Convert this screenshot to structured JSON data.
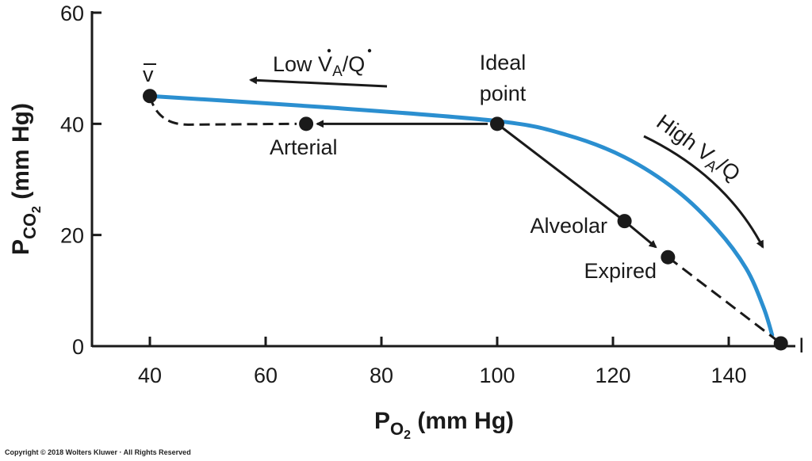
{
  "chart_data": {
    "type": "line",
    "xlabel": {
      "main": "P",
      "sub": "O",
      "subsub": "2",
      "unit": " (mm Hg)"
    },
    "ylabel": {
      "main": "P",
      "sub": "CO",
      "subsub": "2",
      "unit": " (mm Hg)"
    },
    "xlim": [
      30,
      150
    ],
    "ylim": [
      0,
      60
    ],
    "x_ticks": [
      40,
      60,
      80,
      100,
      120,
      140
    ],
    "y_ticks": [
      0,
      20,
      40,
      60
    ],
    "colors": {
      "curve": "#2b8fd0",
      "ink": "#1a1a1a"
    },
    "curve": [
      {
        "x": 40,
        "y": 45
      },
      {
        "x": 70,
        "y": 43
      },
      {
        "x": 100,
        "y": 40.5
      },
      {
        "x": 112,
        "y": 38
      },
      {
        "x": 122,
        "y": 34
      },
      {
        "x": 131,
        "y": 28
      },
      {
        "x": 138,
        "y": 21
      },
      {
        "x": 143,
        "y": 14
      },
      {
        "x": 146,
        "y": 7
      },
      {
        "x": 147.5,
        "y": 2
      }
    ],
    "points": [
      {
        "name": "mixed-venous",
        "label": "v",
        "x": 40,
        "y": 45
      },
      {
        "name": "arterial",
        "label": "Arterial",
        "x": 67,
        "y": 40
      },
      {
        "name": "ideal",
        "label_lines": [
          "Ideal",
          "point"
        ],
        "x": 100,
        "y": 40
      },
      {
        "name": "alveolar",
        "label": "Alveolar",
        "x": 122,
        "y": 22.5
      },
      {
        "name": "expired",
        "label": "Expired",
        "x": 129.5,
        "y": 16
      },
      {
        "name": "inspired",
        "label": "I",
        "x": 149,
        "y": 0.5
      }
    ],
    "annotations": {
      "low": {
        "prefix": "Low ",
        "v": "V",
        "sub": "A",
        "sep": "/",
        "q": "Q"
      },
      "high": {
        "prefix": "High ",
        "v": "V",
        "sub": "A",
        "sep": "/",
        "q": "Q"
      }
    }
  },
  "copyright": "Copyright © 2018 Wolters Kluwer · All Rights Reserved"
}
